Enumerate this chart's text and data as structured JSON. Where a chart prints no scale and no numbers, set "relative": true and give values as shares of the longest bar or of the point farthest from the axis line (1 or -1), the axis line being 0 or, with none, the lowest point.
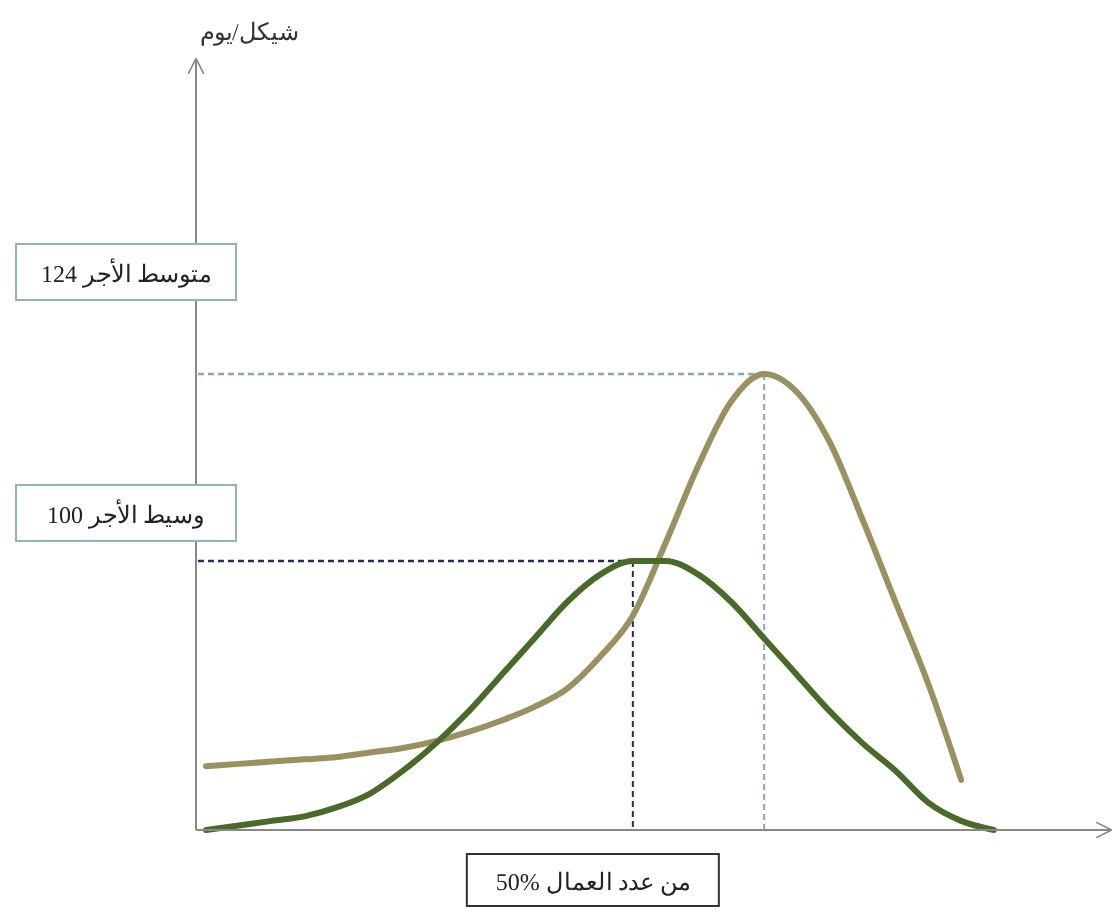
{
  "chart_data": {
    "type": "line",
    "relative": true,
    "marker": "none",
    "line_style": "solid",
    "categories": [
      null,
      null,
      null,
      null,
      null,
      null,
      null,
      null,
      null,
      null,
      null,
      null,
      null,
      null,
      null,
      null,
      null,
      null,
      null,
      null,
      null,
      null,
      null,
      null,
      null
    ],
    "series": [
      {
        "color": "#9a9060",
        "values": [
          0.14,
          0.145,
          0.15,
          0.155,
          0.16,
          0.17,
          0.18,
          0.195,
          0.215,
          0.24,
          0.27,
          0.31,
          0.38,
          0.47,
          0.63,
          0.8,
          0.94,
          1,
          0.96,
          0.85,
          0.68,
          0.5,
          0.32,
          0.11,
          null
        ]
      },
      {
        "color": "#4a6a2a",
        "values": [
          0,
          0.01,
          0.02,
          0.03,
          0.05,
          0.08,
          0.13,
          0.19,
          0.26,
          0.34,
          0.42,
          0.5,
          0.56,
          0.59,
          0.59,
          0.56,
          0.5,
          0.42,
          0.34,
          0.26,
          0.19,
          0.13,
          0.06,
          0.02,
          0
        ]
      }
    ],
    "ref_lines": [
      {
        "axis": "y",
        "value": 1,
        "color": "#8ea4bc",
        "line_style": "dashed"
      },
      {
        "axis": "y",
        "value": 0.59,
        "color": "#1f2f5a",
        "line_style": "dashed"
      }
    ],
    "annotations": [
      "شيكل/يوم",
      "متوسط الأجر 124",
      "وسيط الأجر 100",
      "50% من عدد العمال"
    ]
  }
}
